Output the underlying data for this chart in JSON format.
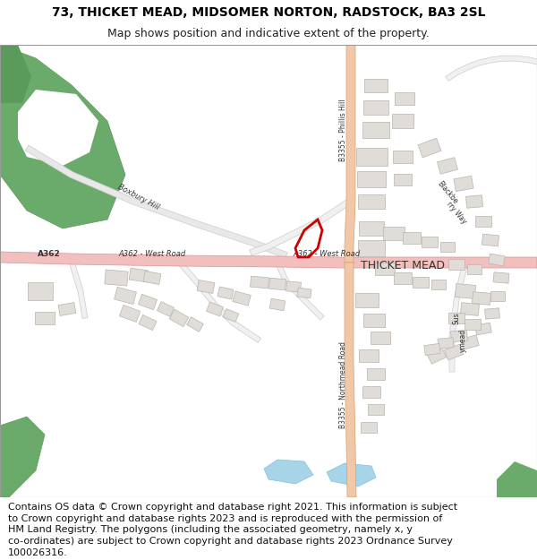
{
  "title_line1": "73, THICKET MEAD, MIDSOMER NORTON, RADSTOCK, BA3 2SL",
  "title_line2": "Map shows position and indicative extent of the property.",
  "footer_lines": [
    "Contains OS data © Crown copyright and database right 2021. This information is subject",
    "to Crown copyright and database rights 2023 and is reproduced with the permission of",
    "HM Land Registry. The polygons (including the associated geometry, namely x, y",
    "co-ordinates) are subject to Crown copyright and database rights 2023 Ordnance Survey",
    "100026316."
  ],
  "title_fontsize": 10,
  "subtitle_fontsize": 9,
  "footer_fontsize": 8,
  "fig_width": 6.0,
  "fig_height": 6.25,
  "map_bg": "#ffffff",
  "road_a_color": "#f2bfbf",
  "road_a_outline": "#e09090",
  "road_b_color": "#f0c8a8",
  "road_b_outline": "#d4a070",
  "road_minor_color": "#ffffff",
  "road_minor_outline": "#c8c8c8",
  "green_color": "#6aaa6a",
  "green_outline": "#5a9a5a",
  "building_fill": "#e0dcd8",
  "building_outline": "#b8b4b0",
  "plot_fill": "#dd4444",
  "plot_outline": "#cc0000",
  "water_fill": "#a8d4e8",
  "header_bg": "#ffffff",
  "footer_bg": "#ffffff",
  "text_color": "#555555",
  "label_color": "#333333"
}
